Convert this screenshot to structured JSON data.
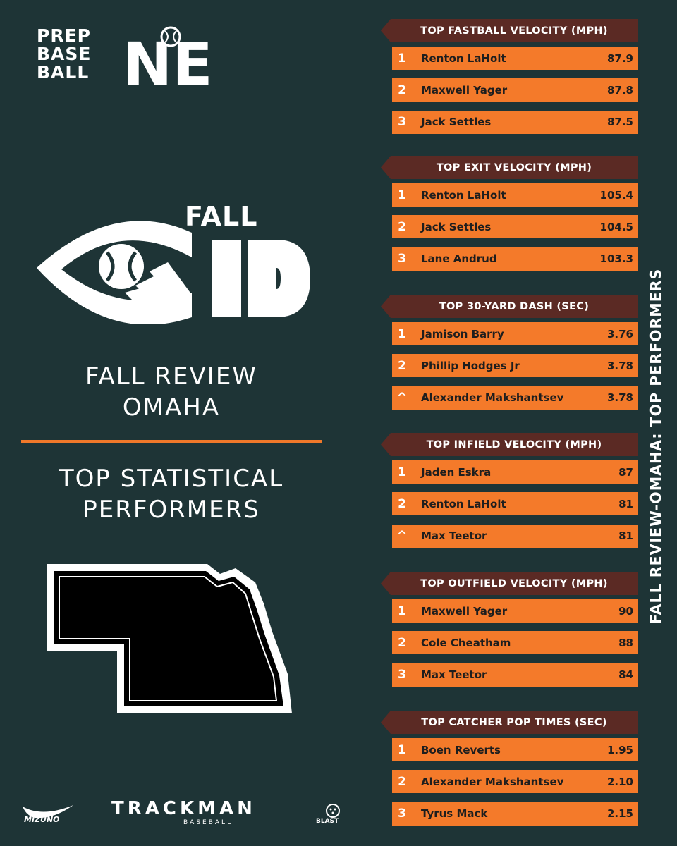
{
  "brand": {
    "prep_lines": [
      "PREP",
      "BASE",
      "BALL"
    ],
    "region_mark": "NE"
  },
  "event_logo": {
    "fall_word": "FALL",
    "id_word": "ID"
  },
  "headline": {
    "title_line1": "FALL REVIEW",
    "title_line2": "OMAHA",
    "subtitle_line1": "TOP STATISTICAL",
    "subtitle_line2": "PERFORMERS"
  },
  "side_title": "FALL REVIEW-OMAHA: TOP PERFORMERS",
  "sponsors": {
    "mizuno": "MIZUNO",
    "trackman": "TRACKMAN",
    "trackman_sub": "BASEBALL",
    "blast": "BLAST"
  },
  "colors": {
    "background": "#1e3436",
    "accent_orange": "#f47a2a",
    "header_maroon": "#5b2a24"
  },
  "sections": [
    {
      "title": "TOP FASTBALL VELOCITY (MPH)",
      "rows": [
        {
          "rank": "1",
          "name": "Renton LaHolt",
          "value": "87.9"
        },
        {
          "rank": "2",
          "name": "Maxwell Yager",
          "value": "87.8"
        },
        {
          "rank": "3",
          "name": "Jack Settles",
          "value": "87.5"
        }
      ]
    },
    {
      "title": "TOP EXIT VELOCITY (MPH)",
      "rows": [
        {
          "rank": "1",
          "name": "Renton LaHolt",
          "value": "105.4"
        },
        {
          "rank": "2",
          "name": "Jack Settles",
          "value": "104.5"
        },
        {
          "rank": "3",
          "name": "Lane Andrud",
          "value": "103.3"
        }
      ]
    },
    {
      "title": "TOP 30-YARD DASH (SEC)",
      "rows": [
        {
          "rank": "1",
          "name": "Jamison Barry",
          "value": "3.76"
        },
        {
          "rank": "2",
          "name": "Phillip Hodges Jr",
          "value": "3.78"
        },
        {
          "rank": "^",
          "name": "Alexander Makshantsev",
          "value": "3.78"
        }
      ]
    },
    {
      "title": "TOP INFIELD VELOCITY (MPH)",
      "rows": [
        {
          "rank": "1",
          "name": "Jaden Eskra",
          "value": "87"
        },
        {
          "rank": "2",
          "name": "Renton LaHolt",
          "value": "81"
        },
        {
          "rank": "^",
          "name": "Max Teetor",
          "value": "81"
        }
      ]
    },
    {
      "title": "TOP OUTFIELD VELOCITY (MPH)",
      "rows": [
        {
          "rank": "1",
          "name": "Maxwell Yager",
          "value": "90"
        },
        {
          "rank": "2",
          "name": "Cole Cheatham",
          "value": "88"
        },
        {
          "rank": "3",
          "name": "Max Teetor",
          "value": "84"
        }
      ]
    },
    {
      "title": "TOP CATCHER POP TIMES (SEC)",
      "rows": [
        {
          "rank": "1",
          "name": "Boen Reverts",
          "value": "1.95"
        },
        {
          "rank": "2",
          "name": "Alexander Makshantsev",
          "value": "2.10"
        },
        {
          "rank": "3",
          "name": "Tyrus Mack",
          "value": "2.15"
        }
      ]
    }
  ]
}
